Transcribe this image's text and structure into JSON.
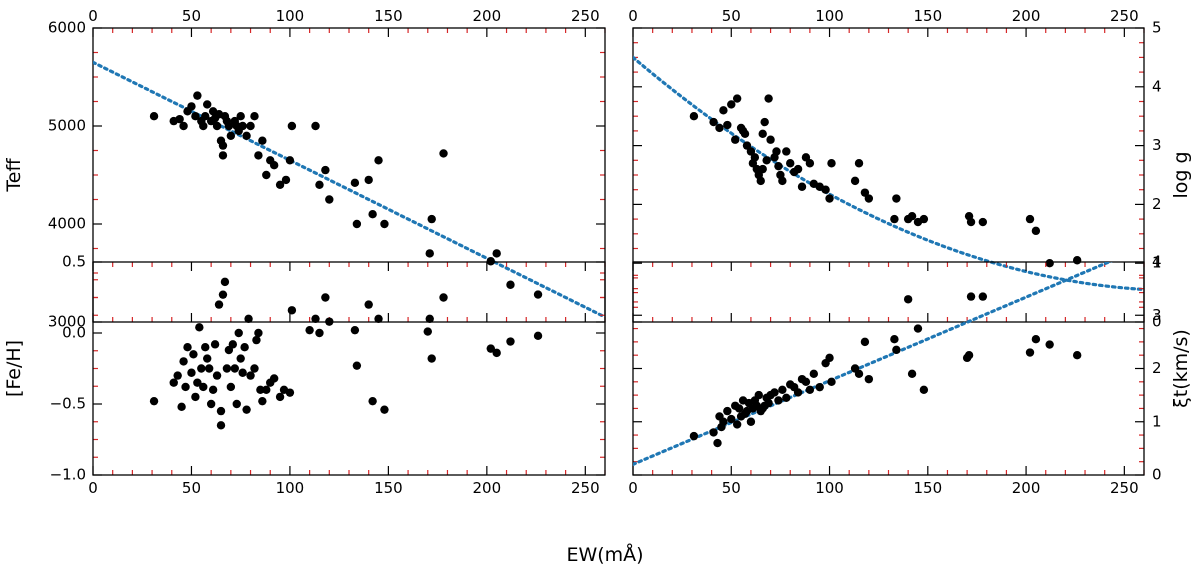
{
  "figure": {
    "xlabel": "EW(mÅ)"
  },
  "chart_data": [
    {
      "type": "scatter",
      "panel": "top-left",
      "ylabel": "Teff",
      "xlim": [
        0,
        260
      ],
      "ylim": [
        3000,
        6000
      ],
      "x_ticks": [
        0,
        50,
        100,
        150,
        200,
        250
      ],
      "y_ticks": [
        3000,
        4000,
        5000,
        6000
      ],
      "x_tick_labels_position": "top",
      "y_tick_labels_position": "left",
      "fit": {
        "type": "polynomial",
        "color": "#1f77b4",
        "style": "dotted",
        "coefficients": [
          5650,
          -10.0
        ],
        "x_range": [
          0,
          260
        ]
      },
      "points": {
        "color": "#000000",
        "x": [
          31,
          41,
          44,
          46,
          48,
          50,
          52,
          53,
          55,
          56,
          57,
          58,
          60,
          61,
          62,
          63,
          64,
          65,
          66,
          66,
          67,
          68,
          69,
          70,
          72,
          73,
          74,
          75,
          76,
          78,
          80,
          82,
          84,
          86,
          88,
          90,
          92,
          95,
          98,
          100,
          101,
          113,
          115,
          118,
          120,
          133,
          134,
          140,
          142,
          145,
          148,
          171,
          172,
          178,
          202,
          205,
          212,
          226
        ],
        "y": [
          5100,
          5050,
          5070,
          5000,
          5150,
          5200,
          5100,
          5310,
          5050,
          5000,
          5100,
          5220,
          5050,
          5150,
          5080,
          5000,
          5120,
          4850,
          4700,
          4800,
          5100,
          5050,
          5000,
          4900,
          5050,
          5000,
          4950,
          5100,
          5000,
          4900,
          5000,
          5100,
          4700,
          4850,
          4500,
          4650,
          4600,
          4400,
          4450,
          4650,
          5000,
          5000,
          4400,
          4550,
          4250,
          4420,
          4000,
          4450,
          4100,
          4650,
          4000,
          3700,
          4050,
          4720,
          3620,
          3700,
          3380,
          3280
        ]
      }
    },
    {
      "type": "scatter",
      "panel": "top-right",
      "ylabel": "log g",
      "xlim": [
        0,
        260
      ],
      "ylim": [
        0,
        5
      ],
      "x_ticks": [
        0,
        50,
        100,
        150,
        200,
        250
      ],
      "y_ticks": [
        0,
        1,
        2,
        3,
        4,
        5
      ],
      "x_tick_labels_position": "top",
      "y_tick_labels_position": "right",
      "fit": {
        "type": "polynomial",
        "color": "#1f77b4",
        "style": "dotted",
        "coefficients": [
          4.5,
          -0.02831,
          5.05e-05
        ],
        "x_range": [
          0,
          260
        ]
      },
      "points": {
        "color": "#000000",
        "x": [
          31,
          41,
          44,
          46,
          48,
          50,
          52,
          53,
          55,
          56,
          57,
          58,
          60,
          61,
          62,
          63,
          64,
          65,
          66,
          66,
          67,
          68,
          69,
          70,
          72,
          73,
          74,
          75,
          76,
          78,
          80,
          82,
          84,
          86,
          88,
          90,
          92,
          95,
          98,
          100,
          101,
          113,
          115,
          118,
          120,
          133,
          134,
          140,
          142,
          145,
          148,
          171,
          172,
          178,
          202,
          205,
          212,
          226
        ],
        "y": [
          3.5,
          3.4,
          3.3,
          3.6,
          3.35,
          3.7,
          3.1,
          3.8,
          3.3,
          3.25,
          3.2,
          3.0,
          2.9,
          2.7,
          2.8,
          2.6,
          2.5,
          2.4,
          2.6,
          3.2,
          3.4,
          2.75,
          3.8,
          3.1,
          2.8,
          2.9,
          2.65,
          2.5,
          2.4,
          2.9,
          2.7,
          2.55,
          2.6,
          2.3,
          2.8,
          2.7,
          2.35,
          2.3,
          2.25,
          2.1,
          2.7,
          2.4,
          2.7,
          2.2,
          2.1,
          1.75,
          2.1,
          1.75,
          1.8,
          1.7,
          1.75,
          1.8,
          1.7,
          1.7,
          1.75,
          1.55,
          1.0,
          1.05
        ]
      }
    },
    {
      "type": "scatter",
      "panel": "bottom-left",
      "ylabel": "[Fe/H]",
      "xlim": [
        0,
        260
      ],
      "ylim": [
        -1.0,
        0.5
      ],
      "x_ticks": [
        0,
        50,
        100,
        150,
        200,
        250
      ],
      "y_ticks": [
        -1.0,
        -0.5,
        0.0,
        0.5
      ],
      "y_tick_labels": [
        "−1.0",
        "−0.5",
        "0.0",
        "0.5"
      ],
      "x_tick_labels_position": "bottom",
      "y_tick_labels_position": "left",
      "points": {
        "color": "#000000",
        "x": [
          31,
          41,
          43,
          45,
          46,
          47,
          48,
          50,
          51,
          52,
          53,
          54,
          55,
          56,
          57,
          58,
          59,
          60,
          61,
          62,
          63,
          64,
          65,
          65,
          66,
          67,
          68,
          69,
          70,
          71,
          72,
          73,
          74,
          75,
          76,
          77,
          78,
          79,
          80,
          82,
          83,
          84,
          85,
          86,
          88,
          90,
          92,
          95,
          97,
          100,
          101,
          110,
          113,
          115,
          118,
          120,
          133,
          134,
          140,
          142,
          145,
          148,
          170,
          171,
          172,
          178,
          202,
          205,
          212,
          226
        ],
        "y": [
          -0.48,
          -0.35,
          -0.3,
          -0.52,
          -0.2,
          -0.38,
          -0.1,
          -0.28,
          -0.15,
          -0.45,
          -0.35,
          0.04,
          -0.25,
          -0.38,
          -0.1,
          -0.18,
          -0.25,
          -0.5,
          -0.4,
          -0.08,
          -0.3,
          0.2,
          -0.55,
          -0.65,
          0.27,
          0.36,
          -0.25,
          -0.12,
          -0.38,
          -0.08,
          -0.25,
          -0.5,
          0.0,
          -0.18,
          -0.28,
          -0.1,
          -0.54,
          0.1,
          -0.3,
          -0.25,
          -0.05,
          0.0,
          -0.4,
          -0.48,
          -0.4,
          -0.35,
          -0.32,
          -0.45,
          -0.4,
          -0.42,
          0.16,
          0.02,
          0.1,
          0.0,
          0.25,
          0.08,
          0.02,
          -0.23,
          0.2,
          -0.48,
          0.1,
          -0.54,
          0.01,
          0.1,
          -0.18,
          0.25,
          -0.11,
          -0.14,
          -0.06,
          -0.02
        ]
      }
    },
    {
      "type": "scatter",
      "panel": "bottom-right",
      "ylabel": "ξt(km/s)",
      "xlim": [
        0,
        260
      ],
      "ylim": [
        0,
        4
      ],
      "x_ticks": [
        0,
        50,
        100,
        150,
        200,
        250
      ],
      "y_ticks": [
        0,
        1,
        2,
        3,
        4
      ],
      "x_tick_labels_position": "bottom",
      "y_tick_labels_position": "right",
      "fit": {
        "type": "linear",
        "color": "#1f77b4",
        "style": "dotted",
        "coefficients": [
          0.2,
          0.0157
        ],
        "x_range": [
          0,
          260
        ]
      },
      "points": {
        "color": "#000000",
        "x": [
          31,
          41,
          43,
          44,
          45,
          46,
          48,
          50,
          52,
          53,
          54,
          55,
          56,
          57,
          58,
          59,
          60,
          61,
          62,
          63,
          64,
          65,
          66,
          67,
          68,
          69,
          70,
          72,
          74,
          76,
          78,
          80,
          82,
          84,
          86,
          88,
          90,
          92,
          95,
          98,
          100,
          101,
          113,
          115,
          118,
          120,
          133,
          134,
          140,
          142,
          145,
          148,
          170,
          171,
          172,
          178,
          202,
          205,
          212,
          226
        ],
        "y": [
          0.73,
          0.8,
          0.6,
          1.1,
          0.9,
          1.0,
          1.2,
          1.05,
          1.3,
          0.95,
          1.25,
          1.1,
          1.4,
          1.15,
          1.2,
          1.35,
          1.0,
          1.25,
          1.4,
          1.3,
          1.5,
          1.2,
          1.25,
          1.3,
          1.45,
          1.35,
          1.5,
          1.55,
          1.4,
          1.6,
          1.45,
          1.7,
          1.65,
          1.55,
          1.8,
          1.75,
          1.6,
          1.9,
          1.65,
          2.1,
          2.2,
          1.75,
          2.0,
          1.9,
          2.5,
          1.8,
          2.55,
          2.35,
          3.3,
          1.9,
          2.75,
          1.6,
          2.2,
          2.25,
          3.35,
          3.35,
          2.3,
          2.55,
          2.45,
          2.25
        ]
      }
    }
  ]
}
